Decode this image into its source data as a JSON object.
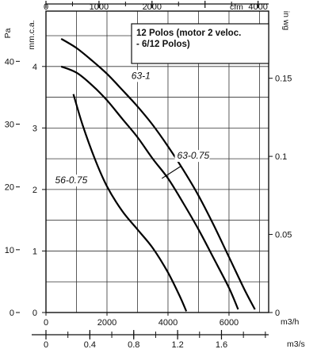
{
  "chart_data": {
    "type": "line",
    "note": [
      "12 Polos (motor 2 veloc.",
      "- 6/12 Polos)"
    ],
    "axes": {
      "cfm": {
        "unit": "cfm",
        "range": [
          0,
          4200
        ],
        "ticks": [
          "0",
          "1000",
          "2000",
          "3000",
          "4000"
        ]
      },
      "m3h": {
        "unit": "m3/h",
        "range": [
          0,
          7300
        ],
        "ticks": [
          "0",
          "2000",
          "4000",
          "6000"
        ]
      },
      "m3s": {
        "unit": "m3/s",
        "range": [
          0,
          2.03
        ],
        "ticks": [
          "0",
          "0.4",
          "0.8",
          "1.2",
          "1.6"
        ]
      },
      "pa": {
        "unit": "Pa",
        "range": [
          0,
          48
        ],
        "ticks": [
          "0",
          "10",
          "20",
          "30",
          "40"
        ]
      },
      "mmca": {
        "unit": "mm.c.a.",
        "range": [
          0,
          4.9
        ],
        "ticks": [
          "0",
          "1",
          "2",
          "3",
          "4"
        ]
      },
      "inwg": {
        "unit": "in wg",
        "range": [
          0,
          0.193
        ],
        "ticks": [
          "0",
          "0.05",
          "0.1",
          "0.15"
        ]
      }
    },
    "x_unit": "m3/h",
    "y_unit": "mm.c.a.",
    "series": [
      {
        "name": "63-1",
        "points": [
          [
            500,
            4.45
          ],
          [
            1000,
            4.3
          ],
          [
            1500,
            4.1
          ],
          [
            2000,
            3.88
          ],
          [
            2500,
            3.62
          ],
          [
            3000,
            3.35
          ],
          [
            3500,
            3.05
          ],
          [
            4000,
            2.7
          ],
          [
            4500,
            2.32
          ],
          [
            5000,
            1.9
          ],
          [
            5500,
            1.42
          ],
          [
            6000,
            0.9
          ],
          [
            6500,
            0.38
          ],
          [
            6850,
            0.05
          ]
        ]
      },
      {
        "name": "63-0.75",
        "points": [
          [
            500,
            4.0
          ],
          [
            1000,
            3.9
          ],
          [
            1500,
            3.7
          ],
          [
            2000,
            3.45
          ],
          [
            2500,
            3.15
          ],
          [
            3000,
            2.85
          ],
          [
            3500,
            2.5
          ],
          [
            4000,
            2.18
          ],
          [
            4500,
            1.78
          ],
          [
            5000,
            1.35
          ],
          [
            5500,
            0.88
          ],
          [
            6000,
            0.4
          ],
          [
            6300,
            0.05
          ]
        ]
      },
      {
        "name": "56-0.75",
        "points": [
          [
            900,
            3.55
          ],
          [
            1200,
            3.05
          ],
          [
            1600,
            2.5
          ],
          [
            2000,
            2.05
          ],
          [
            2500,
            1.65
          ],
          [
            3000,
            1.35
          ],
          [
            3500,
            1.05
          ],
          [
            4000,
            0.65
          ],
          [
            4400,
            0.25
          ],
          [
            4600,
            0.02
          ]
        ]
      }
    ],
    "series_label_positions": [
      [
        2800,
        3.8
      ],
      [
        4300,
        2.5
      ],
      [
        300,
        2.1
      ]
    ],
    "grid": true,
    "legend": "none"
  }
}
